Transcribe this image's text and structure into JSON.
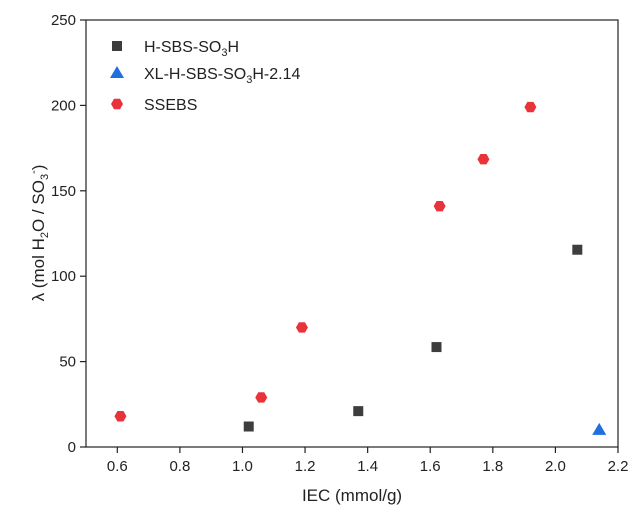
{
  "chart_data": {
    "type": "scatter",
    "xlabel": "IEC (mmol/g)",
    "ylabel_parts": [
      {
        "text": "λ (mol H"
      },
      {
        "text": "2",
        "sub": true
      },
      {
        "text": "O / SO"
      },
      {
        "text": "3",
        "sub": true
      },
      {
        "text": "-",
        "sup": true
      },
      {
        "text": ")"
      }
    ],
    "xlim": [
      0.5,
      2.2
    ],
    "ylim": [
      0,
      250
    ],
    "xticks": [
      "0.6",
      "0.8",
      "1.0",
      "1.2",
      "1.4",
      "1.6",
      "1.8",
      "2.0",
      "2.2"
    ],
    "yticks": [
      "0",
      "50",
      "100",
      "150",
      "200",
      "250"
    ],
    "grid": false,
    "legend_position": "top-left",
    "series": [
      {
        "name_parts": [
          {
            "text": "H-SBS-SO"
          },
          {
            "text": "3",
            "sub": true
          },
          {
            "text": "H"
          }
        ],
        "marker": "square",
        "color": "#3d3d3d",
        "points": [
          [
            1.02,
            12
          ],
          [
            1.37,
            21
          ],
          [
            1.62,
            58.5
          ],
          [
            2.07,
            115.5
          ]
        ]
      },
      {
        "name_parts": [
          {
            "text": "XL-H-SBS-SO"
          },
          {
            "text": "3",
            "sub": true
          },
          {
            "text": "H-2.14"
          }
        ],
        "marker": "triangle",
        "color": "#1f6fe0",
        "points": [
          [
            2.14,
            10
          ]
        ]
      },
      {
        "name_parts": [
          {
            "text": "SSEBS"
          }
        ],
        "marker": "hexagon",
        "color": "#e8333a",
        "points": [
          [
            0.61,
            18
          ],
          [
            1.06,
            29
          ],
          [
            1.19,
            70
          ],
          [
            1.63,
            141
          ],
          [
            1.77,
            168.5
          ],
          [
            1.92,
            199
          ]
        ]
      }
    ]
  }
}
